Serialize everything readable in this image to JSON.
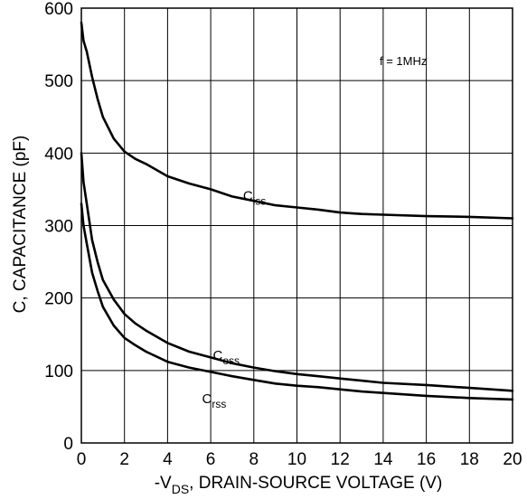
{
  "chart_data": {
    "type": "line",
    "xlabel_prefix": "-V",
    "xlabel_sub": "DS",
    "xlabel_suffix": ", DRAIN-SOURCE VOLTAGE (V)",
    "ylabel": "C, CAPACITANCE (pF)",
    "xlim": [
      0,
      20
    ],
    "ylim": [
      0,
      600
    ],
    "x_ticks": [
      "0",
      "2",
      "4",
      "6",
      "8",
      "10",
      "12",
      "14",
      "16",
      "18",
      "20"
    ],
    "y_ticks": [
      "0",
      "100",
      "200",
      "300",
      "400",
      "500",
      "600"
    ],
    "grid": true,
    "annotation": "f = 1MHz",
    "series": [
      {
        "name": "C",
        "sub": "iss",
        "label_at": [
          7.5,
          335
        ],
        "x": [
          0,
          0.1,
          0.25,
          0.5,
          0.75,
          1,
          1.5,
          2,
          2.5,
          3,
          4,
          5,
          6,
          7,
          8,
          9,
          10,
          11,
          12,
          13,
          14,
          16,
          18,
          20
        ],
        "y": [
          580,
          555,
          540,
          505,
          475,
          450,
          420,
          402,
          392,
          385,
          368,
          358,
          350,
          340,
          334,
          328,
          325,
          322,
          318,
          316,
          315,
          313,
          312,
          310
        ]
      },
      {
        "name": "C",
        "sub": "oss",
        "label_at": [
          6.1,
          115
        ],
        "x": [
          0,
          0.1,
          0.25,
          0.5,
          0.75,
          1,
          1.5,
          2,
          2.5,
          3,
          4,
          5,
          6,
          7,
          8,
          9,
          10,
          11,
          12,
          13,
          14,
          16,
          18,
          20
        ],
        "y": [
          400,
          360,
          330,
          280,
          250,
          225,
          198,
          178,
          165,
          155,
          138,
          126,
          118,
          110,
          104,
          99,
          95,
          92,
          89,
          86,
          83,
          80,
          76,
          72
        ]
      },
      {
        "name": "C",
        "sub": "rss",
        "label_at": [
          5.6,
          55
        ],
        "x": [
          0,
          0.1,
          0.25,
          0.5,
          0.75,
          1,
          1.5,
          2,
          2.5,
          3,
          4,
          5,
          6,
          7,
          8,
          9,
          10,
          11,
          12,
          13,
          14,
          16,
          18,
          20
        ],
        "y": [
          330,
          300,
          275,
          235,
          210,
          188,
          162,
          145,
          135,
          126,
          112,
          104,
          98,
          92,
          87,
          82,
          79,
          77,
          74,
          71,
          69,
          65,
          62,
          60
        ]
      }
    ]
  }
}
